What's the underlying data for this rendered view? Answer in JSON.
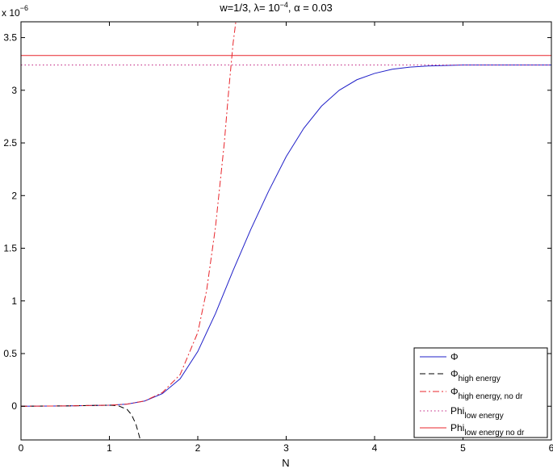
{
  "chart_data": {
    "type": "line",
    "title": "w=1/3, λ= 10⁻⁴, α = 0.03",
    "title_parts": {
      "w": "w=1/3, ",
      "lambda": "λ= 10",
      "lambda_exp": "−4",
      "alpha": ", α = 0.03"
    },
    "xlabel": "N",
    "ylabel": "",
    "y_multiplier": {
      "base": "x 10",
      "exp": "−6"
    },
    "xlim": [
      0,
      6
    ],
    "ylim": [
      -0.32,
      3.65
    ],
    "xticks": [
      0,
      1,
      2,
      3,
      4,
      5,
      6
    ],
    "xtick_labels": [
      "0",
      "1",
      "2",
      "3",
      "4",
      "5",
      "6"
    ],
    "yticks": [
      0,
      0.5,
      1,
      1.5,
      2,
      2.5,
      3,
      3.5
    ],
    "ytick_labels": [
      "0",
      "0.5",
      "1",
      "1.5",
      "2",
      "2.5",
      "3",
      "3.5"
    ],
    "grid": false,
    "legend_position": "bottom-right",
    "series": [
      {
        "name": "Φ",
        "legend_main": "Φ",
        "legend_sub": "",
        "color": "#1f1fc8",
        "dash": "",
        "x": [
          0,
          0.5,
          1.0,
          1.2,
          1.4,
          1.6,
          1.8,
          2.0,
          2.2,
          2.4,
          2.6,
          2.8,
          3.0,
          3.2,
          3.4,
          3.6,
          3.8,
          4.0,
          4.2,
          4.4,
          4.6,
          4.8,
          5.0,
          5.5,
          6.0
        ],
        "y": [
          0,
          0.003,
          0.01,
          0.02,
          0.05,
          0.12,
          0.26,
          0.52,
          0.88,
          1.29,
          1.68,
          2.04,
          2.37,
          2.64,
          2.85,
          3.0,
          3.1,
          3.16,
          3.2,
          3.22,
          3.23,
          3.235,
          3.24,
          3.24,
          3.24
        ]
      },
      {
        "name": "Φhigh energy",
        "legend_main": "Φ",
        "legend_sub": "high energy",
        "color": "#000000",
        "dash": "7,4",
        "x": [
          0,
          0.5,
          1.0,
          1.1,
          1.2,
          1.25,
          1.3,
          1.33,
          1.35
        ],
        "y": [
          0,
          0.003,
          0.01,
          0.005,
          -0.03,
          -0.08,
          -0.17,
          -0.26,
          -0.32
        ]
      },
      {
        "name": "Φhigh energy, no dr",
        "legend_main": "Φ",
        "legend_sub": "high energy, no dr",
        "color": "#e8252b",
        "dash": "8,3,2,3",
        "x": [
          0,
          0.5,
          1.0,
          1.2,
          1.4,
          1.6,
          1.8,
          2.0,
          2.1,
          2.2,
          2.3,
          2.35,
          2.4,
          2.43
        ],
        "y": [
          0,
          0.003,
          0.01,
          0.02,
          0.05,
          0.13,
          0.3,
          0.7,
          1.1,
          1.7,
          2.5,
          3.0,
          3.45,
          3.65
        ]
      },
      {
        "name": "Philow energy",
        "legend_main": "Phi",
        "legend_sub": "low energy",
        "color": "#c02080",
        "dash": "1.5,3",
        "x": [
          0,
          6
        ],
        "y": [
          3.24,
          3.24
        ]
      },
      {
        "name": "Philow energy no dr",
        "legend_main": "Phi",
        "legend_sub": "low energy no dr",
        "color": "#e8252b",
        "dash": "",
        "x": [
          0,
          6
        ],
        "y": [
          3.33,
          3.33
        ]
      }
    ]
  }
}
